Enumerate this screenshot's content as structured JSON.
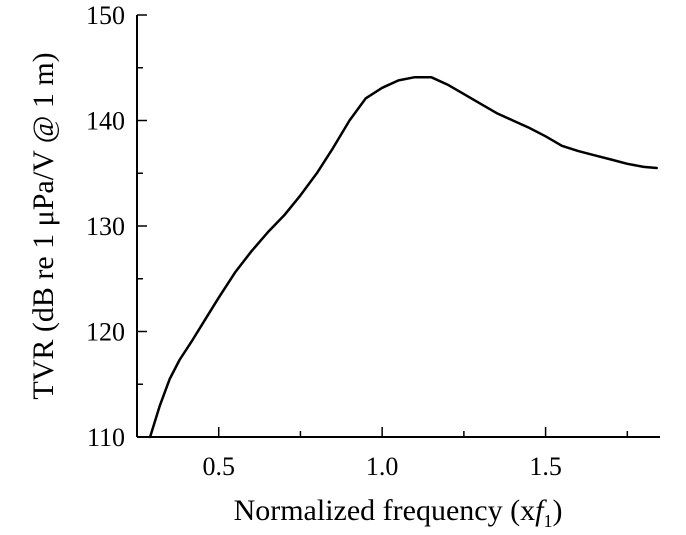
{
  "chart_data": {
    "type": "line",
    "title": "",
    "xlabel": "Normalized frequency (x",
    "xlabel_var": "f",
    "xlabel_sub": "1",
    "xlabel_close": ")",
    "ylabel": "TVR (dB re 1 μPa/V @ 1 m)",
    "xlim": [
      0.25,
      1.85
    ],
    "ylim": [
      110,
      150
    ],
    "xticks": [
      0.5,
      1.0,
      1.5
    ],
    "xtick_labels": [
      "0.5",
      "1.0",
      "1.5"
    ],
    "yticks": [
      110,
      120,
      130,
      140,
      150
    ],
    "ytick_labels": [
      "110",
      "120",
      "130",
      "140",
      "150"
    ],
    "grid": false,
    "series": [
      {
        "name": "",
        "color": "#000000",
        "x": [
          0.29,
          0.32,
          0.35,
          0.38,
          0.42,
          0.46,
          0.5,
          0.55,
          0.6,
          0.65,
          0.7,
          0.75,
          0.8,
          0.85,
          0.9,
          0.95,
          1.0,
          1.05,
          1.1,
          1.15,
          1.2,
          1.25,
          1.3,
          1.35,
          1.4,
          1.45,
          1.5,
          1.55,
          1.6,
          1.65,
          1.7,
          1.75,
          1.8,
          1.84
        ],
        "y": [
          110.0,
          113.0,
          115.5,
          117.3,
          119.2,
          121.2,
          123.2,
          125.6,
          127.6,
          129.4,
          131.0,
          132.9,
          135.0,
          137.4,
          140.0,
          142.1,
          143.1,
          143.8,
          144.1,
          144.1,
          143.4,
          142.5,
          141.6,
          140.7,
          140.0,
          139.3,
          138.5,
          137.6,
          137.1,
          136.7,
          136.3,
          135.9,
          135.6,
          135.5
        ]
      }
    ]
  }
}
